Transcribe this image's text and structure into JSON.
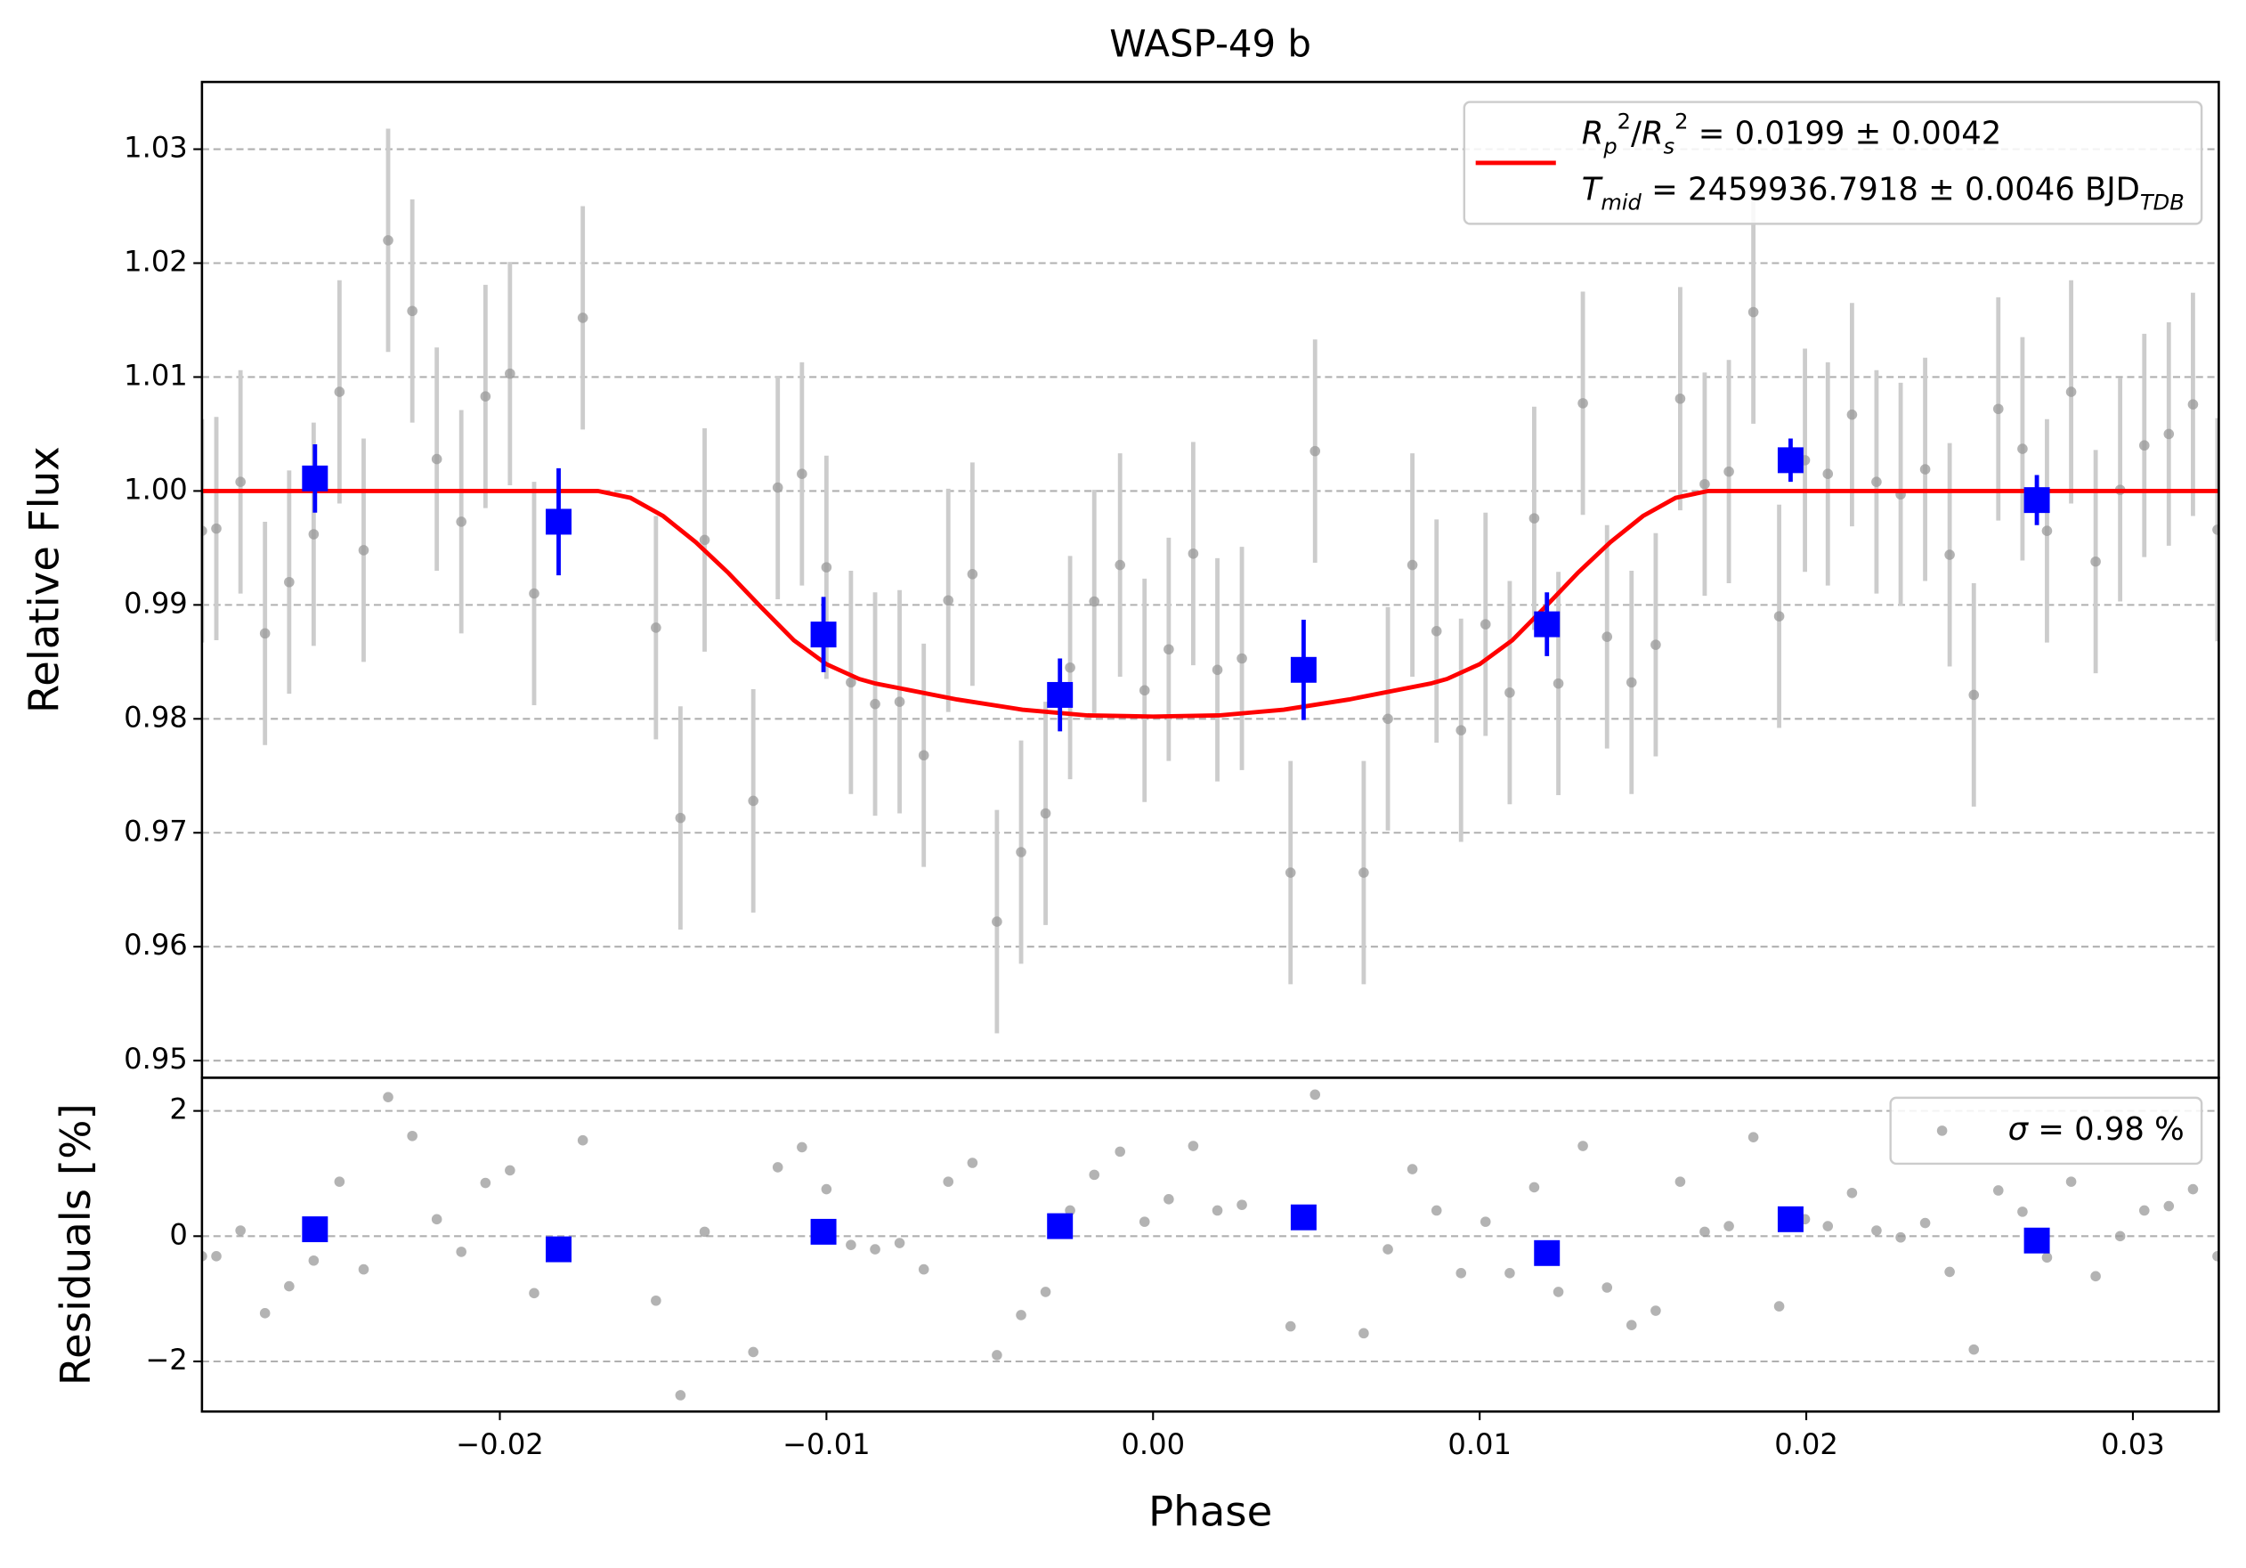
{
  "chart_data": [
    {
      "type": "scatter",
      "title": "WASP-49 b",
      "y_label": "Relative Flux",
      "xlim": [
        -0.02912,
        0.03263
      ],
      "ylim": [
        0.9485,
        1.0359
      ],
      "yticks": [
        {
          "value": 0.95,
          "label": "0.95"
        },
        0.96,
        0.97,
        0.98,
        0.99,
        {
          "value": 1.0,
          "label": "1.00"
        },
        1.01,
        1.02,
        1.03
      ],
      "grid": "y",
      "legend": "upper right",
      "series": [
        {
          "kind": "points",
          "color": "#999999",
          "x": [
            -0.02912,
            -0.02868,
            -0.02794,
            -0.02719,
            -0.02645,
            -0.0257,
            -0.02491,
            -0.02417,
            -0.02342,
            -0.02268,
            -0.02193,
            -0.02118,
            -0.02044,
            -0.01969,
            -0.01895,
            -0.01746,
            -0.01522,
            -0.01447,
            -0.01373,
            -0.01224,
            -0.01149,
            -0.01075,
            -0.01,
            -0.00925,
            -0.00851,
            -0.00776,
            -0.00702,
            -0.00627,
            -0.00553,
            -0.00478,
            -0.00404,
            -0.00329,
            -0.00254,
            -0.0018,
            -0.00101,
            -0.00026,
            0.00048,
            0.00123,
            0.00197,
            0.00272,
            0.00421,
            0.00496,
            0.00645,
            0.00719,
            0.00794,
            0.00868,
            0.00943,
            0.01018,
            0.01092,
            0.01167,
            0.01241,
            0.01316,
            0.0139,
            0.01465,
            0.01539,
            0.01614,
            0.01689,
            0.01763,
            0.01838,
            0.01917,
            0.01996,
            0.02066,
            0.0214,
            0.02215,
            0.02289,
            0.02364,
            0.02439,
            0.02513,
            0.02588,
            0.02662,
            0.02737,
            0.02811,
            0.02886,
            0.02961,
            0.03035,
            0.0311,
            0.03184,
            0.03259
          ],
          "values": [
            0.9965,
            0.9967,
            1.0008,
            0.9875,
            0.992,
            0.9962,
            1.0087,
            0.9948,
            1.022,
            1.0158,
            1.0028,
            0.9973,
            1.0083,
            1.0103,
            0.991,
            1.0152,
            0.988,
            0.9713,
            0.9957,
            0.9728,
            1.0003,
            1.0015,
            0.9933,
            0.9832,
            0.9813,
            0.9815,
            0.9768,
            0.9904,
            0.9927,
            0.9622,
            0.9683,
            0.9717,
            0.9845,
            0.9903,
            0.9935,
            0.9825,
            0.9861,
            0.9945,
            0.9843,
            0.9853,
            0.9665,
            1.0035,
            0.9665,
            0.98,
            0.9935,
            0.9877,
            0.979,
            0.9883,
            0.9823,
            0.9976,
            0.9831,
            1.0077,
            0.9872,
            0.9832,
            0.9865,
            1.0081,
            1.0006,
            1.0017,
            1.0157,
            0.989,
            1.0027,
            1.0015,
            1.0067,
            1.0008,
            0.9997,
            1.0019,
            0.9944,
            0.9821,
            1.0072,
            1.0037,
            0.9965,
            1.0087,
            0.9938,
            1.0001,
            1.004,
            1.005,
            1.0076,
            0.9966
          ],
          "errors": [
            0.0098,
            0.0098,
            0.0098,
            0.0098,
            0.0098,
            0.0098,
            0.0098,
            0.0098,
            0.0098,
            0.0098,
            0.0098,
            0.0098,
            0.0098,
            0.0098,
            0.0098,
            0.0098,
            0.0098,
            0.0098,
            0.0098,
            0.0098,
            0.0098,
            0.0098,
            0.0098,
            0.0098,
            0.0098,
            0.0098,
            0.0098,
            0.0098,
            0.0098,
            0.0098,
            0.0098,
            0.0098,
            0.0098,
            0.0098,
            0.0098,
            0.0098,
            0.0098,
            0.0098,
            0.0098,
            0.0098,
            0.0098,
            0.0098,
            0.0098,
            0.0098,
            0.0098,
            0.0098,
            0.0098,
            0.0098,
            0.0098,
            0.0098,
            0.0098,
            0.0098,
            0.0098,
            0.0098,
            0.0098,
            0.0098,
            0.0098,
            0.0098,
            0.0098,
            0.0098,
            0.0098,
            0.0098,
            0.0098,
            0.0098,
            0.0098,
            0.0098,
            0.0098,
            0.0098,
            0.0098,
            0.0098,
            0.0098,
            0.0098,
            0.0098,
            0.0098,
            0.0098,
            0.0098,
            0.0098,
            0.0098
          ]
        },
        {
          "kind": "line",
          "color": "#ff0000",
          "name_parts": [
            [
              {
                "text": "R",
                "style": "italic"
              },
              {
                "text": "p",
                "style": "italic-sub"
              },
              {
                "text": "2",
                "style": "sup"
              },
              {
                "text": "/",
                "style": "normal"
              },
              {
                "text": "R",
                "style": "italic"
              },
              {
                "text": "s",
                "style": "italic-sub"
              },
              {
                "text": "2",
                "style": "sup"
              },
              {
                "text": " = 0.0199 ± 0.0042",
                "style": "normal"
              }
            ],
            [
              {
                "text": "T",
                "style": "italic"
              },
              {
                "text": "mid",
                "style": "italic-sub"
              },
              {
                "text": " = 2459936.7918 ± 0.0046 BJD",
                "style": "normal"
              },
              {
                "text": "TDB",
                "style": "italic-sub"
              }
            ]
          ],
          "x": [
            -0.02912,
            -0.017,
            -0.016,
            -0.015,
            -0.014,
            -0.013,
            -0.012,
            -0.011,
            -0.01,
            -0.009,
            -0.0085,
            -0.006,
            -0.004,
            -0.002,
            0,
            0.002,
            0.004,
            0.006,
            0.0085,
            0.009,
            0.01,
            0.011,
            0.012,
            0.013,
            0.014,
            0.015,
            0.016,
            0.017,
            0.03263
          ],
          "values": [
            1.0,
            1.0,
            0.9994,
            0.9978,
            0.9955,
            0.9928,
            0.9898,
            0.9869,
            0.9848,
            0.9835,
            0.9831,
            0.9817,
            0.9808,
            0.9803,
            0.9802,
            0.9803,
            0.9808,
            0.9817,
            0.9831,
            0.9835,
            0.9848,
            0.9869,
            0.9898,
            0.9928,
            0.9955,
            0.9978,
            0.9994,
            1.0,
            1.0
          ]
        },
        {
          "kind": "binned",
          "color": "#0000ff",
          "x": [
            -0.02566,
            -0.0182,
            -0.01009,
            -0.00285,
            0.00461,
            0.01206,
            0.01952,
            0.02706
          ],
          "values": [
            1.0011,
            0.9973,
            0.9874,
            0.9821,
            0.9843,
            0.9883,
            1.0027,
            0.9992
          ],
          "errors": [
            0.003,
            0.0047,
            0.0033,
            0.0032,
            0.0044,
            0.0028,
            0.0019,
            0.0022
          ]
        }
      ]
    },
    {
      "type": "scatter",
      "x_label": "Phase",
      "y_label": "Residuals [%]",
      "xlim": [
        -0.02912,
        0.03263
      ],
      "ylim": [
        -2.8,
        2.53
      ],
      "xticks": [
        {
          "value": -0.02,
          "label": "−0.02"
        },
        {
          "value": -0.01,
          "label": "−0.01"
        },
        {
          "value": 0,
          "label": "0.00"
        },
        0.01,
        0.02,
        0.03
      ],
      "yticks": [
        {
          "value": -2,
          "label": "−2"
        },
        0,
        2
      ],
      "grid": "y",
      "legend": "upper right",
      "series": [
        {
          "kind": "points",
          "color": "#999999",
          "name_parts": [
            [
              {
                "text": "σ",
                "style": "italic"
              },
              {
                "text": " = 0.98 %",
                "style": "normal"
              }
            ]
          ],
          "x": [
            -0.02912,
            -0.02868,
            -0.02794,
            -0.02719,
            -0.02645,
            -0.0257,
            -0.02491,
            -0.02417,
            -0.02342,
            -0.02268,
            -0.02193,
            -0.02118,
            -0.02044,
            -0.01969,
            -0.01895,
            -0.01746,
            -0.01522,
            -0.01447,
            -0.01373,
            -0.01224,
            -0.01149,
            -0.01075,
            -0.01,
            -0.00925,
            -0.00851,
            -0.00776,
            -0.00702,
            -0.00627,
            -0.00553,
            -0.00478,
            -0.00404,
            -0.00329,
            -0.00254,
            -0.0018,
            -0.00101,
            -0.00026,
            0.00048,
            0.00123,
            0.00197,
            0.00272,
            0.00421,
            0.00496,
            0.00645,
            0.00719,
            0.00794,
            0.00868,
            0.00943,
            0.01018,
            0.01092,
            0.01167,
            0.01241,
            0.01316,
            0.0139,
            0.01465,
            0.01539,
            0.01614,
            0.01689,
            0.01763,
            0.01838,
            0.01917,
            0.01996,
            0.02066,
            0.0214,
            0.02215,
            0.02289,
            0.02364,
            0.02439,
            0.02513,
            0.02588,
            0.02662,
            0.02737,
            0.02811,
            0.02886,
            0.02961,
            0.03035,
            0.0311,
            0.03184,
            0.03259
          ],
          "values": [
            -0.32,
            -0.32,
            0.09,
            -1.23,
            -0.8,
            -0.39,
            0.87,
            -0.53,
            2.22,
            1.6,
            0.27,
            -0.25,
            0.85,
            1.05,
            -0.91,
            1.53,
            -1.03,
            -2.54,
            0.07,
            -1.85,
            1.1,
            1.42,
            0.75,
            -0.14,
            -0.21,
            -0.11,
            -0.53,
            0.87,
            1.17,
            -1.9,
            -1.26,
            -0.89,
            0.41,
            0.98,
            1.35,
            0.23,
            0.59,
            1.44,
            0.41,
            0.5,
            -1.44,
            2.26,
            -1.55,
            -0.21,
            1.07,
            0.41,
            -0.59,
            0.23,
            -0.59,
            0.78,
            -0.89,
            1.44,
            -0.82,
            -1.42,
            -1.19,
            0.87,
            0.07,
            0.16,
            1.58,
            -1.12,
            0.27,
            0.16,
            0.69,
            0.09,
            -0.02,
            0.21,
            -0.57,
            -1.81,
            0.73,
            0.39,
            -0.34,
            0.87,
            -0.64,
            0.0,
            0.41,
            0.48,
            0.75,
            -0.32
          ]
        },
        {
          "kind": "binned",
          "color": "#0000ff",
          "x": [
            -0.02566,
            -0.0182,
            -0.01009,
            -0.00285,
            0.00461,
            0.01206,
            0.01952,
            0.02706
          ],
          "values": [
            0.11,
            -0.21,
            0.07,
            0.16,
            0.3,
            -0.27,
            0.27,
            -0.07
          ]
        }
      ]
    }
  ]
}
